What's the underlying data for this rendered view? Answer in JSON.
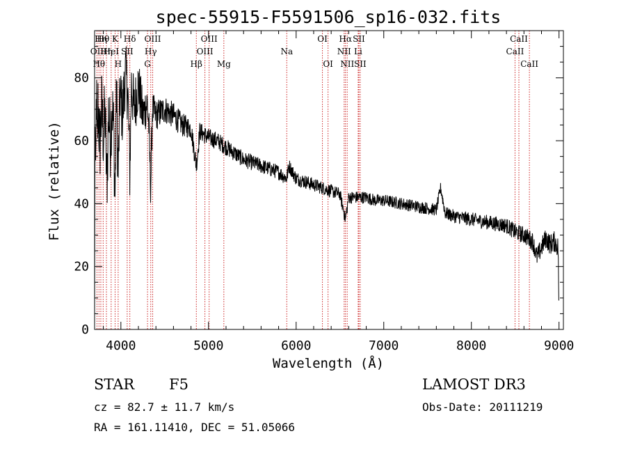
{
  "chart_data": {
    "type": "line",
    "title": "spec-55915-F5591506_sp16-032.fits",
    "xlabel": "Wavelength (Å)",
    "ylabel": "Flux (relative)",
    "xlim": [
      3700,
      9050
    ],
    "ylim": [
      0,
      95
    ],
    "xticks": [
      4000,
      5000,
      6000,
      7000,
      8000,
      9000
    ],
    "yticks": [
      0,
      20,
      40,
      60,
      80
    ],
    "series": [
      {
        "name": "spectrum",
        "color": "#000000",
        "anchors": [
          [
            3700,
            0
          ],
          [
            3702,
            30
          ],
          [
            3706,
            70
          ],
          [
            3712,
            40
          ],
          [
            3720,
            78
          ],
          [
            3730,
            55
          ],
          [
            3740,
            72
          ],
          [
            3760,
            58
          ],
          [
            3780,
            70
          ],
          [
            3800,
            62
          ],
          [
            3820,
            68
          ],
          [
            3840,
            45
          ],
          [
            3860,
            70
          ],
          [
            3880,
            60
          ],
          [
            3900,
            72
          ],
          [
            3920,
            62
          ],
          [
            3933,
            40
          ],
          [
            3950,
            78
          ],
          [
            3968,
            48
          ],
          [
            3990,
            75
          ],
          [
            4020,
            68
          ],
          [
            4050,
            82
          ],
          [
            4080,
            75
          ],
          [
            4102,
            50
          ],
          [
            4120,
            78
          ],
          [
            4150,
            70
          ],
          [
            4200,
            78
          ],
          [
            4250,
            68
          ],
          [
            4300,
            72
          ],
          [
            4320,
            64
          ],
          [
            4340,
            45
          ],
          [
            4360,
            70
          ],
          [
            4400,
            68
          ],
          [
            4500,
            70
          ],
          [
            4600,
            68
          ],
          [
            4700,
            65
          ],
          [
            4800,
            64
          ],
          [
            4861,
            52
          ],
          [
            4900,
            63
          ],
          [
            5000,
            61
          ],
          [
            5100,
            60
          ],
          [
            5200,
            58
          ],
          [
            5300,
            56
          ],
          [
            5400,
            54
          ],
          [
            5500,
            53
          ],
          [
            5600,
            52
          ],
          [
            5700,
            51
          ],
          [
            5800,
            50
          ],
          [
            5890,
            48
          ],
          [
            5920,
            52
          ],
          [
            6000,
            48
          ],
          [
            6100,
            47
          ],
          [
            6200,
            46
          ],
          [
            6300,
            45
          ],
          [
            6400,
            44
          ],
          [
            6500,
            43
          ],
          [
            6563,
            35
          ],
          [
            6600,
            42
          ],
          [
            6700,
            42
          ],
          [
            6800,
            42
          ],
          [
            6900,
            41
          ],
          [
            7000,
            41
          ],
          [
            7200,
            40
          ],
          [
            7400,
            39
          ],
          [
            7600,
            38
          ],
          [
            7650,
            45
          ],
          [
            7700,
            37
          ],
          [
            7800,
            36
          ],
          [
            8000,
            35
          ],
          [
            8200,
            34
          ],
          [
            8400,
            33
          ],
          [
            8500,
            31
          ],
          [
            8600,
            30
          ],
          [
            8700,
            28
          ],
          [
            8750,
            23
          ],
          [
            8800,
            26
          ],
          [
            8850,
            29
          ],
          [
            8900,
            27
          ],
          [
            8950,
            28
          ],
          [
            8990,
            26
          ],
          [
            9000,
            5
          ]
        ],
        "noise": [
          [
            3700,
            14
          ],
          [
            4200,
            9
          ],
          [
            4400,
            5
          ],
          [
            4900,
            3
          ],
          [
            5500,
            2.5
          ],
          [
            6700,
            2
          ],
          [
            7600,
            2
          ],
          [
            8400,
            2.5
          ],
          [
            9000,
            3.5
          ]
        ]
      }
    ],
    "lines": [
      {
        "wl": 3727,
        "label": "OII",
        "row": 1
      },
      {
        "wl": 3750,
        "label": "Hθ",
        "row": 2
      },
      {
        "wl": 3771,
        "label": "Hη",
        "row": 0
      },
      {
        "wl": 3798,
        "label": "Hθ",
        "row": 0
      },
      {
        "wl": 3835,
        "label": "Hη",
        "row": 1
      },
      {
        "wl": 3889,
        "label": "HeI",
        "row": 1
      },
      {
        "wl": 3934,
        "label": "K",
        "row": 0
      },
      {
        "wl": 3969,
        "label": "H",
        "row": 2
      },
      {
        "wl": 4072,
        "label": "SII",
        "row": 1
      },
      {
        "wl": 4102,
        "label": "Hδ",
        "row": 0
      },
      {
        "wl": 4304,
        "label": "G",
        "row": 2
      },
      {
        "wl": 4341,
        "label": "Hγ",
        "row": 1
      },
      {
        "wl": 4363,
        "label": "OIII",
        "row": 0
      },
      {
        "wl": 4861,
        "label": "Hβ",
        "row": 2
      },
      {
        "wl": 4959,
        "label": "OIII",
        "row": 1
      },
      {
        "wl": 5007,
        "label": "OIII",
        "row": 0
      },
      {
        "wl": 5175,
        "label": "Mg",
        "row": 2
      },
      {
        "wl": 5893,
        "label": "Na",
        "row": 1
      },
      {
        "wl": 6300,
        "label": "OI",
        "row": 0
      },
      {
        "wl": 6364,
        "label": "OI",
        "row": 2
      },
      {
        "wl": 6548,
        "label": "NII",
        "row": 1
      },
      {
        "wl": 6563,
        "label": "Hα",
        "row": 0
      },
      {
        "wl": 6583,
        "label": "NII",
        "row": 2
      },
      {
        "wl": 6708,
        "label": "Li",
        "row": 1
      },
      {
        "wl": 6716,
        "label": "SII",
        "row": 0
      },
      {
        "wl": 6731,
        "label": "SII",
        "row": 2
      },
      {
        "wl": 8498,
        "label": "CaII",
        "row": 1
      },
      {
        "wl": 8542,
        "label": "CaII",
        "row": 0
      },
      {
        "wl": 8662,
        "label": "CaII",
        "row": 2
      }
    ]
  },
  "info": {
    "obj_class": "STAR",
    "subclass": "F5",
    "survey": "LAMOST DR3",
    "cz": "cz = 82.7 ± 11.7 km/s",
    "obs_date": "Obs-Date: 20111219",
    "coords": "RA = 161.11410, DEC =  51.05066"
  },
  "colors": {
    "line_marker": "#cc2222",
    "spectrum": "#000000"
  }
}
